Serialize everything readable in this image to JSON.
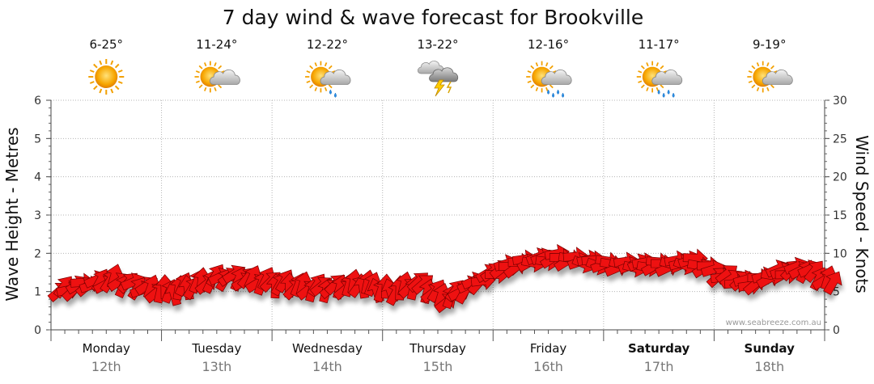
{
  "chart_data": {
    "type": "line",
    "title": "7 day wind & wave forecast for Brookville",
    "y_left": {
      "label": "Wave Height - Metres",
      "range": [
        0,
        6
      ],
      "ticks": [
        "0",
        "1",
        "2",
        "3",
        "4",
        "5",
        "6"
      ]
    },
    "y_right": {
      "label": "Wind Speed - Knots",
      "range": [
        0,
        30
      ],
      "ticks": [
        "0",
        "5",
        "10",
        "15",
        "20",
        "25",
        "30"
      ]
    },
    "grid": true,
    "credit": "www.seabreeze.com.au",
    "days": [
      {
        "day": "Monday",
        "date": "12th",
        "temp": "6-25°",
        "icon": "sunny-icon",
        "bold": false
      },
      {
        "day": "Tuesday",
        "date": "13th",
        "temp": "11-24°",
        "icon": "partly-cloudy-icon",
        "bold": false
      },
      {
        "day": "Wednesday",
        "date": "14th",
        "temp": "12-22°",
        "icon": "sun-shower-icon",
        "bold": false
      },
      {
        "day": "Thursday",
        "date": "15th",
        "temp": "13-22°",
        "icon": "thunderstorm-icon",
        "bold": false
      },
      {
        "day": "Friday",
        "date": "16th",
        "temp": "12-16°",
        "icon": "sun-rain-icon",
        "bold": false
      },
      {
        "day": "Saturday",
        "date": "17th",
        "temp": "11-17°",
        "icon": "sun-rain-icon",
        "bold": true
      },
      {
        "day": "Sunday",
        "date": "18th",
        "temp": "9-19°",
        "icon": "partly-cloudy-icon",
        "bold": true
      }
    ],
    "wind_series": {
      "name": "Wind speed & direction",
      "unit": "knots",
      "color": "#ee1111",
      "t": [
        0,
        0.25,
        0.5,
        0.75,
        1,
        1.25,
        1.5,
        1.75,
        2,
        2.25,
        2.5,
        2.75,
        3,
        3.25,
        3.5,
        3.75,
        4,
        4.25,
        4.5,
        4.75,
        5,
        5.25,
        5.5,
        5.75,
        6,
        6.25,
        6.5,
        6.75,
        7
      ],
      "speed_knots": [
        5,
        6,
        6.5,
        5.5,
        5,
        6,
        7,
        6.5,
        6,
        5.5,
        5.5,
        6,
        5,
        6,
        4,
        6,
        8,
        9,
        9.5,
        9,
        8.5,
        8.5,
        8.5,
        9,
        7,
        6,
        7.5,
        8,
        6
      ],
      "direction_deg": [
        40,
        20,
        60,
        30,
        90,
        70,
        40,
        50,
        70,
        60,
        50,
        80,
        90,
        50,
        60,
        30,
        20,
        10,
        15,
        0,
        0,
        10,
        5,
        0,
        30,
        20,
        10,
        40,
        60
      ]
    }
  }
}
